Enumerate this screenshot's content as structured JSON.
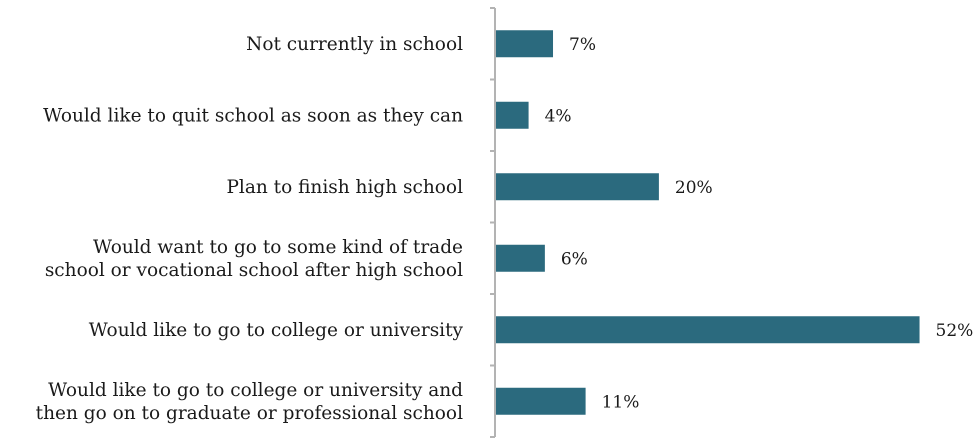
{
  "chart_data": {
    "type": "bar",
    "orientation": "horizontal",
    "categories": [
      [
        "Not currently in school"
      ],
      [
        "Would like to quit school as soon as they can"
      ],
      [
        "Plan to finish high school"
      ],
      [
        "Would want to go to some kind of trade",
        "school or vocational school after high school"
      ],
      [
        "Would like to go to college or university"
      ],
      [
        "Would like to go to college or university and",
        "then go on to graduate or professional school"
      ]
    ],
    "values": [
      7,
      4,
      20,
      6,
      52,
      11
    ],
    "value_labels": [
      "7%",
      "4%",
      "20%",
      "6%",
      "52%",
      "11%"
    ],
    "unit": "%",
    "bar_color": "#2b6a7e",
    "axis_color": "#b3b3b3",
    "grid": false,
    "legend": "none"
  }
}
